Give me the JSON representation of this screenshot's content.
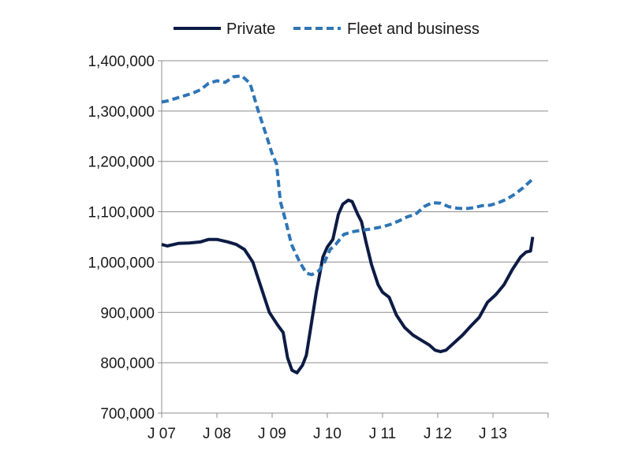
{
  "chart_data": {
    "type": "line",
    "title": "",
    "xlabel": "",
    "ylabel": "",
    "ylim": [
      700000,
      1400000
    ],
    "xlim": [
      2007.0,
      2014.0
    ],
    "y_ticks": [
      700000,
      800000,
      900000,
      1000000,
      1100000,
      1200000,
      1300000,
      1400000
    ],
    "y_tick_labels": [
      "700,000",
      "800,000",
      "900,000",
      "1,000,000",
      "1,100,000",
      "1,200,000",
      "1,300,000",
      "1,400,000"
    ],
    "x_ticks": [
      2007,
      2008,
      2009,
      2010,
      2011,
      2012,
      2013
    ],
    "x_tick_labels": [
      "J 07",
      "J 08",
      "J 09",
      "J 10",
      "J 11",
      "J 12",
      "J 13"
    ],
    "grid": "horizontal",
    "legend": "top",
    "series": [
      {
        "name": "Private",
        "color": "#0d1b45",
        "style": "solid",
        "x": [
          2007.0,
          2007.1,
          2007.3,
          2007.5,
          2007.7,
          2007.85,
          2008.0,
          2008.2,
          2008.35,
          2008.5,
          2008.65,
          2008.8,
          2008.95,
          2009.1,
          2009.2,
          2009.28,
          2009.36,
          2009.45,
          2009.55,
          2009.62,
          2009.7,
          2009.8,
          2009.92,
          2010.0,
          2010.1,
          2010.2,
          2010.28,
          2010.38,
          2010.45,
          2010.55,
          2010.62,
          2010.7,
          2010.8,
          2010.92,
          2011.0,
          2011.12,
          2011.25,
          2011.4,
          2011.55,
          2011.7,
          2011.85,
          2011.95,
          2012.05,
          2012.15,
          2012.3,
          2012.45,
          2012.6,
          2012.75,
          2012.9,
          2013.05,
          2013.2,
          2013.35,
          2013.5,
          2013.6,
          2013.68,
          2013.72
        ],
        "y": [
          1035000,
          1032000,
          1037000,
          1038000,
          1040000,
          1045000,
          1045000,
          1040000,
          1035000,
          1025000,
          1000000,
          950000,
          900000,
          875000,
          860000,
          810000,
          785000,
          780000,
          795000,
          815000,
          870000,
          940000,
          1010000,
          1030000,
          1045000,
          1095000,
          1115000,
          1123000,
          1120000,
          1095000,
          1080000,
          1040000,
          995000,
          955000,
          940000,
          930000,
          895000,
          870000,
          855000,
          845000,
          835000,
          825000,
          822000,
          825000,
          840000,
          855000,
          873000,
          890000,
          920000,
          935000,
          955000,
          985000,
          1010000,
          1020000,
          1022000,
          1050000
        ]
      },
      {
        "name": "Fleet and business",
        "color": "#2e75b6",
        "style": "dashed",
        "x": [
          2007.0,
          2007.1,
          2007.25,
          2007.4,
          2007.55,
          2007.7,
          2007.85,
          2008.0,
          2008.15,
          2008.3,
          2008.45,
          2008.6,
          2008.75,
          2008.9,
          2009.0,
          2009.08,
          2009.15,
          2009.25,
          2009.35,
          2009.5,
          2009.62,
          2009.72,
          2009.85,
          2009.95,
          2010.05,
          2010.15,
          2010.3,
          2010.45,
          2010.6,
          2010.75,
          2010.9,
          2011.0,
          2011.15,
          2011.3,
          2011.45,
          2011.6,
          2011.75,
          2011.9,
          2012.05,
          2012.2,
          2012.35,
          2012.5,
          2012.65,
          2012.8,
          2012.95,
          2013.1,
          2013.25,
          2013.4,
          2013.55,
          2013.72
        ],
        "y": [
          1318000,
          1320000,
          1325000,
          1330000,
          1335000,
          1342000,
          1355000,
          1360000,
          1357000,
          1368000,
          1370000,
          1355000,
          1300000,
          1250000,
          1215000,
          1195000,
          1120000,
          1080000,
          1035000,
          1000000,
          978000,
          975000,
          983000,
          1000000,
          1025000,
          1035000,
          1055000,
          1060000,
          1063000,
          1065000,
          1068000,
          1070000,
          1075000,
          1082000,
          1090000,
          1095000,
          1110000,
          1118000,
          1117000,
          1110000,
          1107000,
          1106000,
          1108000,
          1112000,
          1113000,
          1118000,
          1125000,
          1135000,
          1148000,
          1165000
        ]
      }
    ]
  }
}
